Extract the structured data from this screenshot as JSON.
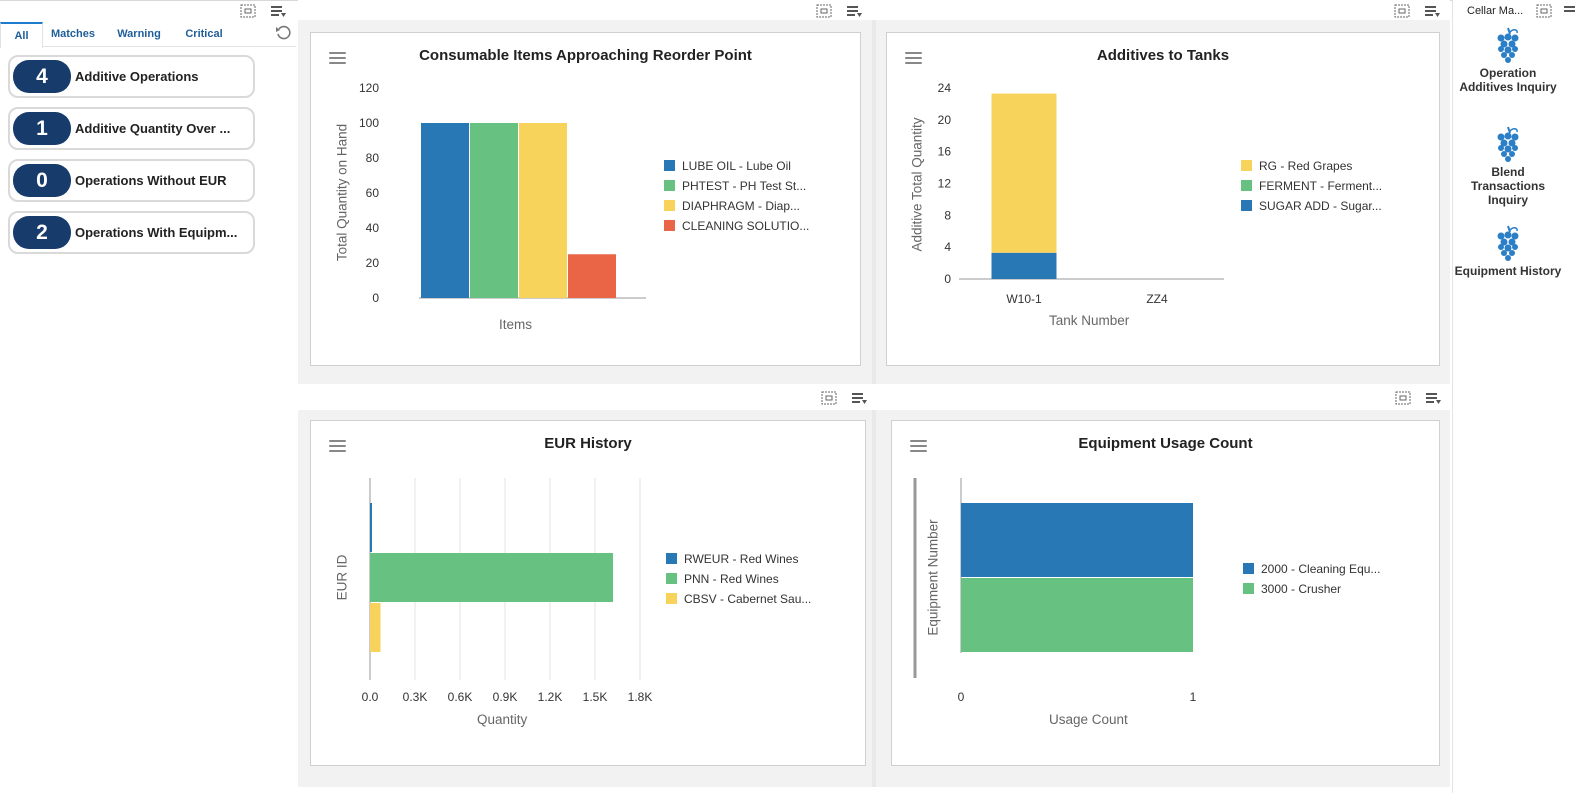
{
  "watchlist": {
    "tabs": [
      {
        "label": "All"
      },
      {
        "label": "Matches"
      },
      {
        "label": "Warning"
      },
      {
        "label": "Critical"
      }
    ],
    "items": [
      {
        "count": "4",
        "label": "Additive Operations"
      },
      {
        "count": "1",
        "label": "Additive Quantity Over ..."
      },
      {
        "count": "0",
        "label": "Operations Without EUR"
      },
      {
        "count": "2",
        "label": "Operations With Equipm..."
      }
    ]
  },
  "springboard": {
    "title": "Cellar Ma...",
    "items": [
      {
        "label": "Operation Additives Inquiry"
      },
      {
        "label": "Blend Transactions Inquiry"
      },
      {
        "label": "Equipment History"
      }
    ]
  },
  "colors": {
    "blue": "#2878b5",
    "green": "#67c282",
    "yellow": "#f8d35b",
    "red": "#ea6546",
    "badge": "#173b6b"
  },
  "chart_data": [
    {
      "id": "consumables",
      "type": "bar",
      "title": "Consumable Items Approaching Reorder Point",
      "xlabel": "Items",
      "ylabel": "Total Quantity on Hand",
      "ylim": [
        0,
        120
      ],
      "yticks": [
        "0",
        "20",
        "40",
        "60",
        "80",
        "100",
        "120"
      ],
      "series": [
        {
          "name": "LUBE OIL - Lube Oil",
          "values": [
            100
          ]
        },
        {
          "name": "PHTEST - PH Test St...",
          "values": [
            100
          ]
        },
        {
          "name": "DIAPHRAGM - Diap...",
          "values": [
            100
          ]
        },
        {
          "name": "CLEANING SOLUTIO...",
          "values": [
            25
          ]
        }
      ]
    },
    {
      "id": "additives",
      "type": "bar",
      "stacked": true,
      "title": "Additives to Tanks",
      "xlabel": "Tank Number",
      "ylabel": "Additive Total Quantity",
      "ylim": [
        0,
        24
      ],
      "yticks": [
        "0",
        "4",
        "8",
        "12",
        "16",
        "20",
        "24"
      ],
      "categories": [
        "W10-1",
        "ZZ4"
      ],
      "series": [
        {
          "name": "RG - Red Grapes",
          "values": [
            20,
            0
          ]
        },
        {
          "name": "FERMENT - Ferment...",
          "values": [
            0,
            0
          ]
        },
        {
          "name": "SUGAR ADD - Sugar...",
          "values": [
            3.3,
            0
          ]
        }
      ]
    },
    {
      "id": "eur",
      "type": "bar",
      "orientation": "horizontal",
      "title": "EUR History",
      "xlabel": "Quantity",
      "ylabel": "EUR ID",
      "xlim": [
        0,
        1800
      ],
      "xticks": [
        "0.0",
        "0.3K",
        "0.6K",
        "0.9K",
        "1.2K",
        "1.5K",
        "1.8K"
      ],
      "series": [
        {
          "name": "RWEUR - Red Wines",
          "values": [
            10
          ]
        },
        {
          "name": "PNN - Red Wines",
          "values": [
            1620
          ]
        },
        {
          "name": "CBSV - Cabernet Sau...",
          "values": [
            70
          ]
        }
      ]
    },
    {
      "id": "equipment",
      "type": "bar",
      "orientation": "horizontal",
      "title": "Equipment Usage Count",
      "xlabel": "Usage Count",
      "ylabel": "Equipment Number",
      "xlim": [
        0,
        1
      ],
      "xticks": [
        "0",
        "1"
      ],
      "series": [
        {
          "name": "2000 - Cleaning Equ...",
          "values": [
            1
          ]
        },
        {
          "name": "3000 - Crusher",
          "values": [
            1
          ]
        }
      ]
    }
  ]
}
